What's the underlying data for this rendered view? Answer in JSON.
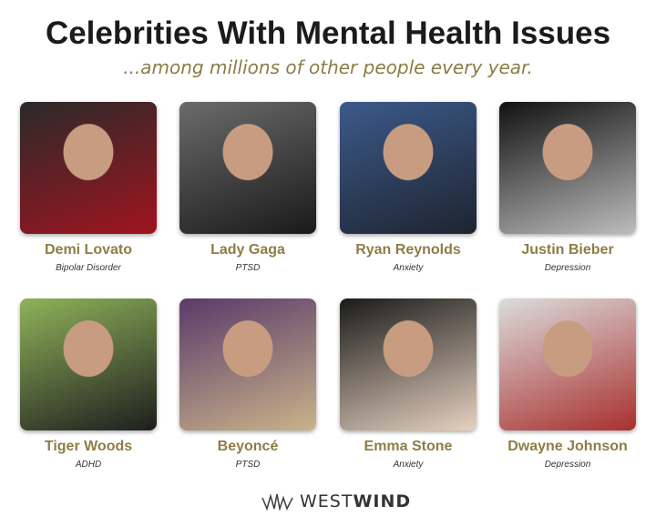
{
  "header": {
    "title": "Celebrities With Mental Health Issues",
    "subtitle": "...among millions of other people every year."
  },
  "celebrities": [
    {
      "name": "Demi Lovato",
      "condition": "Bipolar Disorder",
      "photo_colors": [
        "#2a2a2a",
        "#a0141f"
      ]
    },
    {
      "name": "Lady Gaga",
      "condition": "PTSD",
      "photo_colors": [
        "#6b6b6b",
        "#1a1a1a"
      ]
    },
    {
      "name": "Ryan Reynolds",
      "condition": "Anxiety",
      "photo_colors": [
        "#3c5a8a",
        "#1e2430"
      ]
    },
    {
      "name": "Justin Bieber",
      "condition": "Depression",
      "photo_colors": [
        "#111",
        "#bdbdbd"
      ]
    },
    {
      "name": "Tiger Woods",
      "condition": "ADHD",
      "photo_colors": [
        "#8fb35a",
        "#1e1e1e"
      ]
    },
    {
      "name": "Beyoncé",
      "condition": "PTSD",
      "photo_colors": [
        "#5a3a6a",
        "#c9b38a"
      ]
    },
    {
      "name": "Emma Stone",
      "condition": "Anxiety",
      "photo_colors": [
        "#1a1a1a",
        "#e6d2c0"
      ]
    },
    {
      "name": "Dwayne Johnson",
      "condition": "Depression",
      "photo_colors": [
        "#dcdcdc",
        "#a8302e"
      ]
    }
  ],
  "footer": {
    "logo_light": "WEST",
    "logo_bold": "WIND"
  }
}
